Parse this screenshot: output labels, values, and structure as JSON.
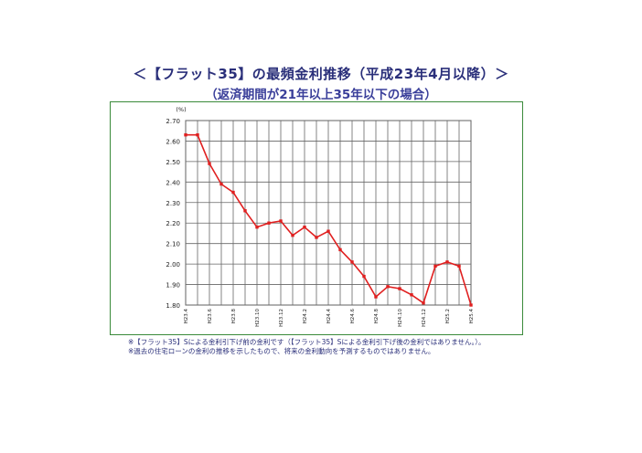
{
  "header": {
    "title": "＜【フラット35】の最頻金利推移（平成23年4月以降）＞",
    "subtitle": "（返済期間が21年以上35年以下の場合）"
  },
  "chart_data": {
    "type": "line",
    "title": "【フラット35】の最頻金利推移（平成23年4月以降）",
    "subtitle": "（返済期間が21年以上35年以下の場合）",
    "ylabel": "(%)",
    "xlabel": "",
    "ylim": [
      1.8,
      2.7
    ],
    "yticks": [
      "2.70",
      "2.60",
      "2.50",
      "2.40",
      "2.30",
      "2.20",
      "2.10",
      "2.00",
      "1.90",
      "1.80"
    ],
    "grid": true,
    "line_color": "#e02020",
    "x": [
      "H23.4",
      "H23.5",
      "H23.6",
      "H23.7",
      "H23.8",
      "H23.9",
      "H23.10",
      "H23.11",
      "H23.12",
      "H24.1",
      "H24.2",
      "H24.3",
      "H24.4",
      "H24.5",
      "H24.6",
      "H24.7",
      "H24.8",
      "H24.9",
      "H24.10",
      "H24.11",
      "H24.12",
      "H25.1",
      "H25.2",
      "H25.3",
      "H25.4"
    ],
    "x_tick_labels": [
      "H23.4",
      "",
      "H23.6",
      "",
      "H23.8",
      "",
      "H23.10",
      "",
      "H23.12",
      "",
      "H24.2",
      "",
      "H24.4",
      "",
      "H24.6",
      "",
      "H24.8",
      "",
      "H24.10",
      "",
      "H24.12",
      "",
      "H25.2",
      "",
      "H25.4"
    ],
    "series": [
      {
        "values": [
          2.63,
          2.63,
          2.49,
          2.39,
          2.35,
          2.26,
          2.18,
          2.2,
          2.21,
          2.14,
          2.18,
          2.13,
          2.16,
          2.07,
          2.01,
          1.94,
          1.84,
          1.89,
          1.88,
          1.85,
          1.81,
          1.99,
          2.01,
          1.99,
          1.8
        ]
      }
    ]
  },
  "notes": [
    "※【フラット35】Sによる金利引下げ前の金利です（【フラット35】Sによる金利引下げ後の金利ではありません。）。",
    "※過去の住宅ローンの金利の推移を示したもので、将来の金利動向を予測するものではありません。"
  ]
}
